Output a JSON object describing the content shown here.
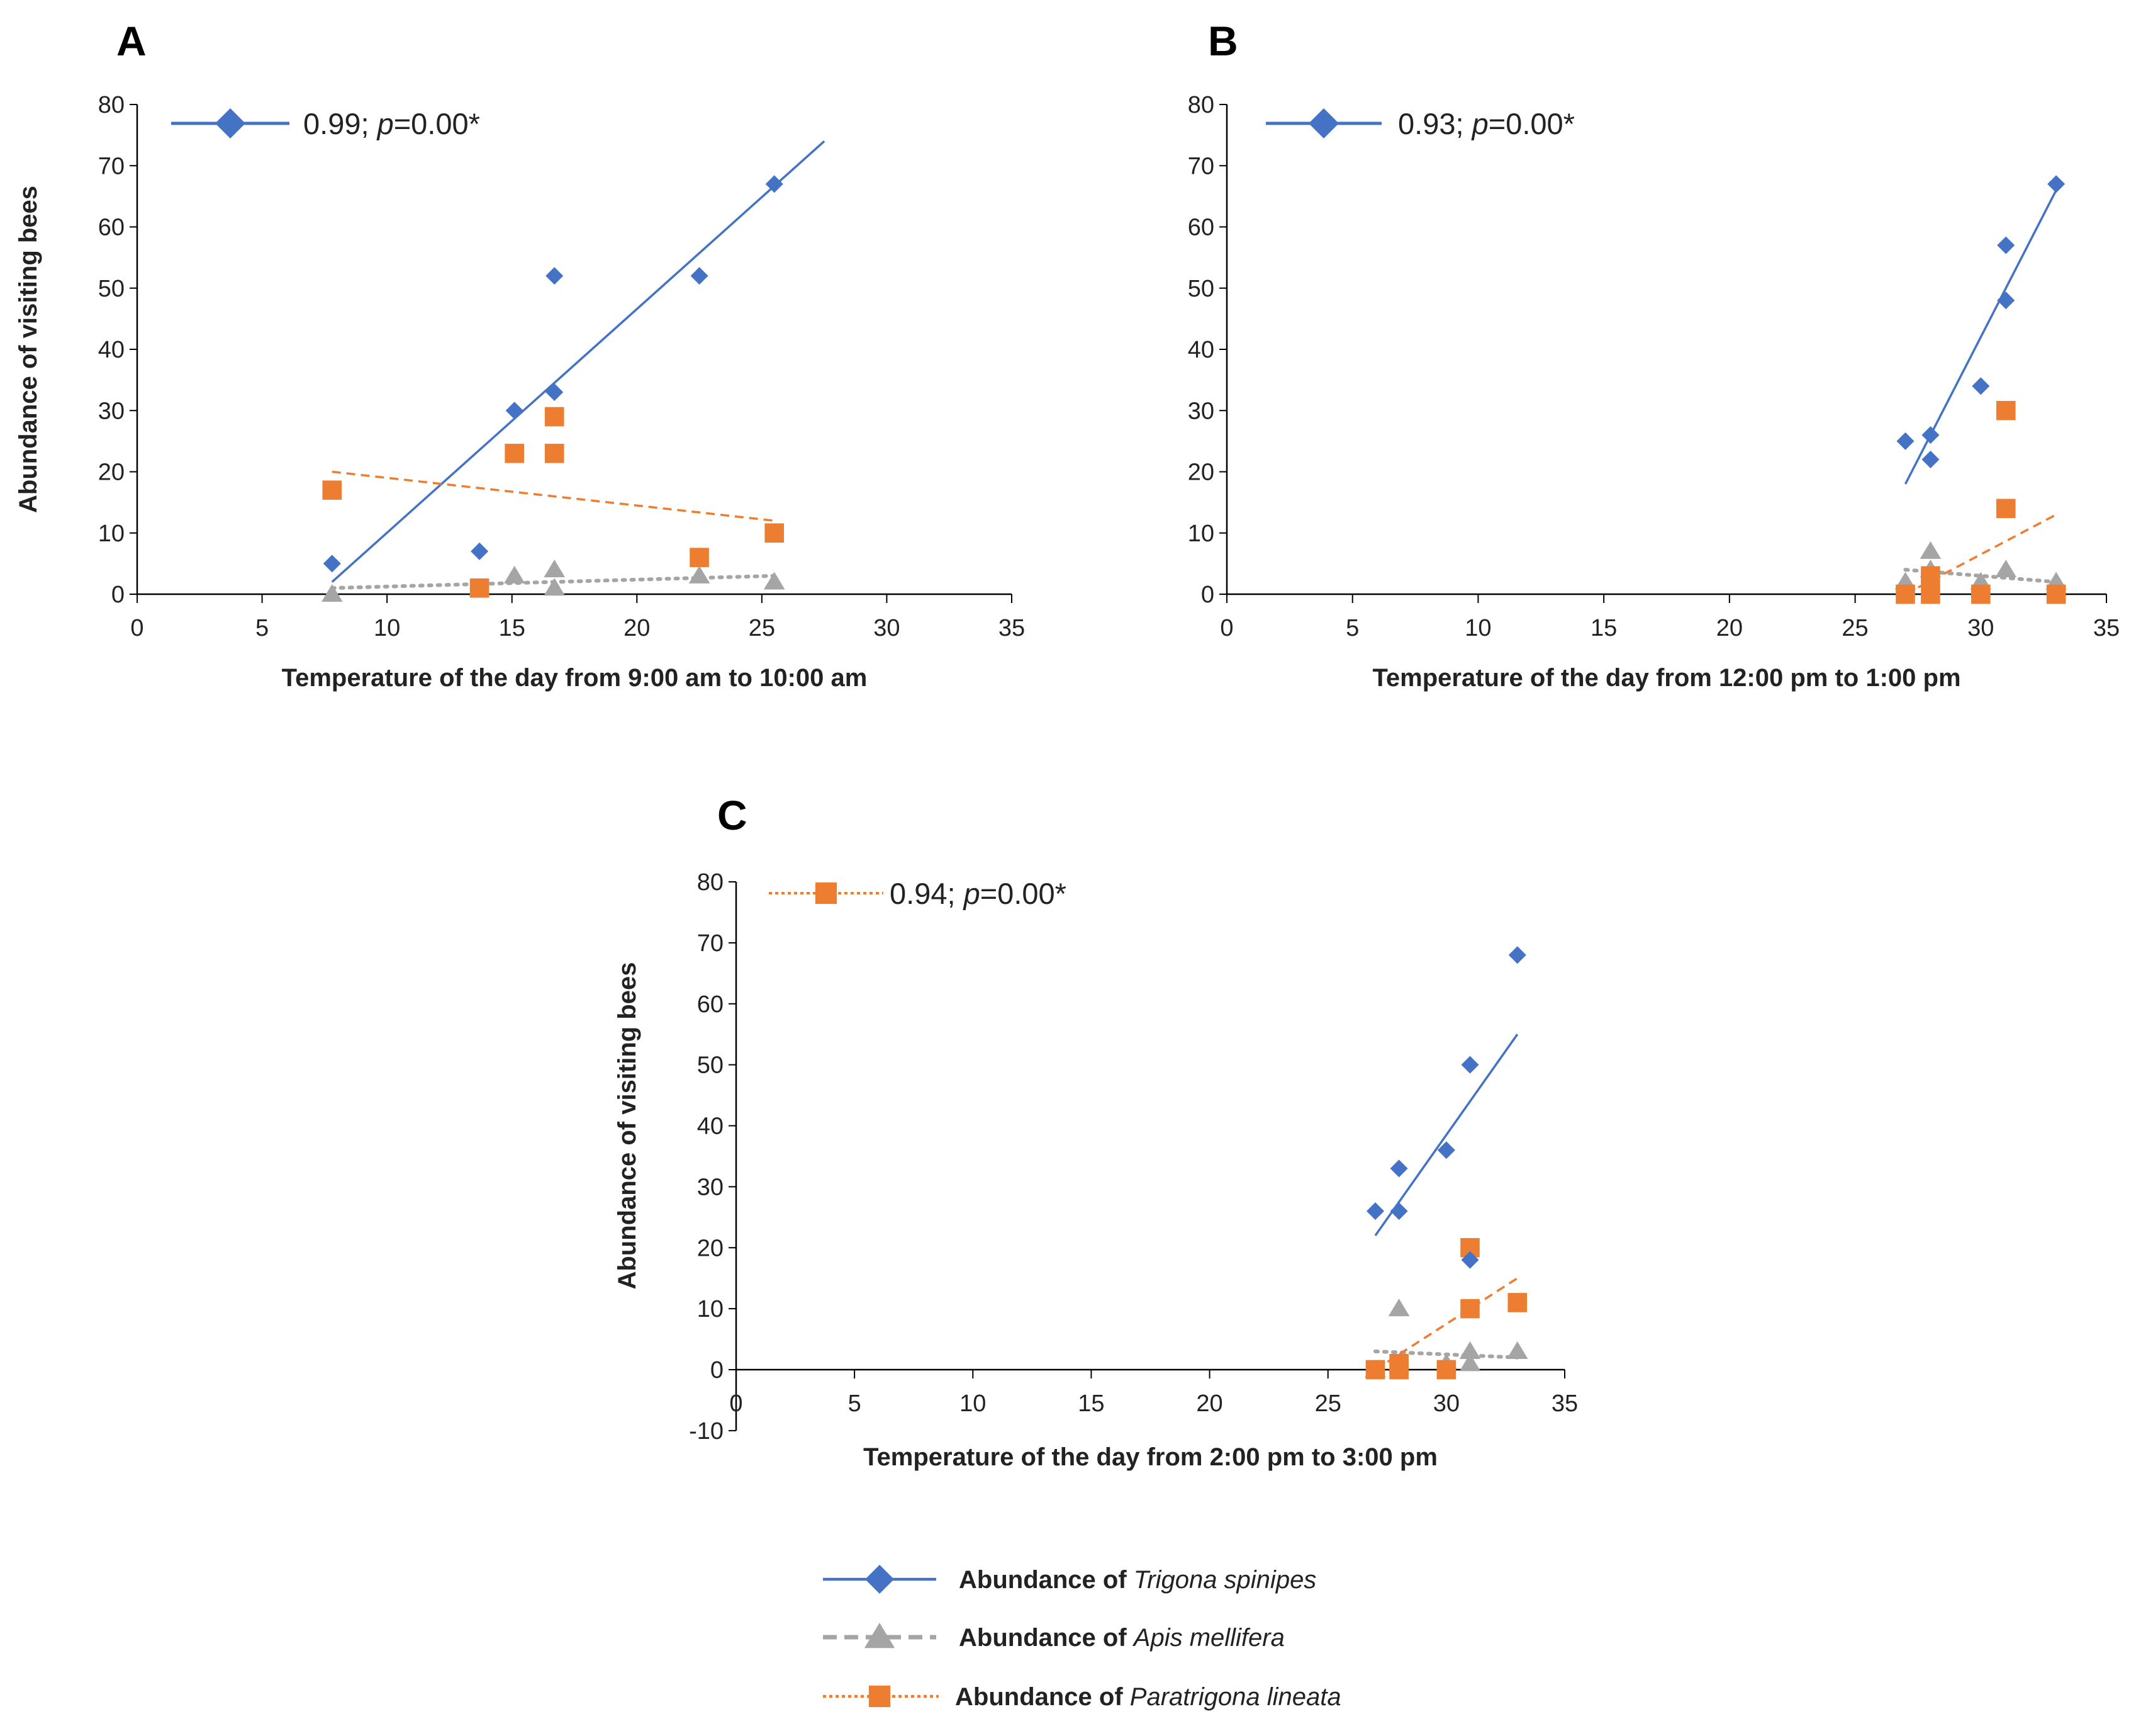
{
  "chart_data": [
    {
      "type": "scatter",
      "panel_letter": "A",
      "title": "",
      "xlabel": "Temperature of the day from 9:00 am to 10:00 am",
      "ylabel": "Abundance of visiting bees",
      "xlim": [
        0,
        35
      ],
      "ylim": [
        0,
        80
      ],
      "xticks": [
        0,
        5,
        10,
        15,
        20,
        25,
        30,
        35
      ],
      "yticks": [
        0,
        10,
        20,
        30,
        40,
        50,
        60,
        70,
        80
      ],
      "grid": false,
      "annotation": {
        "r": "0.99; ",
        "p_symbol": "p",
        "p_value": "=0.00*",
        "series_marker": "Trigona spinipes"
      },
      "series": [
        {
          "name": "Trigona spinipes",
          "x": [
            7.8,
            13.7,
            15.1,
            16.7,
            16.7,
            22.5,
            25.5
          ],
          "y": [
            5,
            7,
            30,
            33,
            52,
            52,
            67
          ],
          "trendline": {
            "x": [
              7.8,
              27.5
            ],
            "y": [
              2,
              74
            ]
          }
        },
        {
          "name": "Apis mellifera",
          "x": [
            7.8,
            13.7,
            15.1,
            16.7,
            16.7,
            22.5,
            25.5
          ],
          "y": [
            0,
            1,
            3,
            1,
            4,
            3,
            2
          ],
          "trendline": {
            "x": [
              7.8,
              25.5
            ],
            "y": [
              1,
              3
            ]
          }
        },
        {
          "name": "Paratrigona lineata",
          "x": [
            7.8,
            13.7,
            15.1,
            16.7,
            16.7,
            22.5,
            25.5
          ],
          "y": [
            17,
            1,
            23,
            23,
            29,
            6,
            10
          ],
          "trendline": {
            "x": [
              7.8,
              25.5
            ],
            "y": [
              20,
              12
            ]
          }
        }
      ]
    },
    {
      "type": "scatter",
      "panel_letter": "B",
      "title": "",
      "xlabel": "Temperature of the day from 12:00 pm to 1:00 pm",
      "ylabel": "",
      "xlim": [
        0,
        35
      ],
      "ylim": [
        0,
        80
      ],
      "xticks": [
        0,
        5,
        10,
        15,
        20,
        25,
        30,
        35
      ],
      "yticks": [
        0,
        10,
        20,
        30,
        40,
        50,
        60,
        70,
        80
      ],
      "grid": false,
      "annotation": {
        "r": "0.93; ",
        "p_symbol": "p",
        "p_value": "=0.00*",
        "series_marker": "Trigona spinipes"
      },
      "series": [
        {
          "name": "Trigona spinipes",
          "x": [
            27,
            28,
            28,
            30,
            31,
            31,
            33
          ],
          "y": [
            25,
            26,
            22,
            34,
            48,
            57,
            67
          ],
          "trendline": {
            "x": [
              27,
              33
            ],
            "y": [
              18,
              66
            ]
          }
        },
        {
          "name": "Apis mellifera",
          "x": [
            27,
            28,
            28,
            30,
            31,
            33
          ],
          "y": [
            2,
            7,
            4,
            2,
            4,
            2
          ],
          "trendline": {
            "x": [
              27,
              33
            ],
            "y": [
              4,
              2
            ]
          }
        },
        {
          "name": "Paratrigona lineata",
          "x": [
            27,
            28,
            28,
            30,
            31,
            31,
            33
          ],
          "y": [
            0,
            0,
            3,
            0,
            14,
            30,
            0
          ],
          "trendline": {
            "x": [
              27,
              33
            ],
            "y": [
              0,
              13
            ]
          }
        }
      ]
    },
    {
      "type": "scatter",
      "panel_letter": "C",
      "title": "",
      "xlabel": "Temperature of the day from 2:00 pm to 3:00 pm",
      "ylabel": "Abundance of visiting bees",
      "xlim": [
        0,
        35
      ],
      "ylim": [
        -10,
        80
      ],
      "xticks": [
        0,
        5,
        10,
        15,
        20,
        25,
        30,
        35
      ],
      "yticks": [
        -10,
        0,
        10,
        20,
        30,
        40,
        50,
        60,
        70,
        80
      ],
      "grid": false,
      "annotation": {
        "r": "0.94; ",
        "p_symbol": "p",
        "p_value": "=0.00*",
        "series_marker": "Paratrigona lineata"
      },
      "series": [
        {
          "name": "Trigona spinipes",
          "x": [
            27,
            28,
            28,
            30,
            31,
            31,
            33
          ],
          "y": [
            26,
            26,
            33,
            36,
            18,
            50,
            68
          ],
          "trendline": {
            "x": [
              27,
              33
            ],
            "y": [
              22,
              55
            ]
          }
        },
        {
          "name": "Apis mellifera",
          "x": [
            27,
            28,
            28,
            30,
            31,
            31,
            33
          ],
          "y": [
            0,
            10,
            1,
            1,
            1,
            3,
            3
          ],
          "trendline": {
            "x": [
              27,
              33
            ],
            "y": [
              3,
              2
            ]
          }
        },
        {
          "name": "Paratrigona lineata",
          "x": [
            27,
            28,
            28,
            30,
            31,
            31,
            33
          ],
          "y": [
            0,
            0,
            1,
            0,
            10,
            20,
            11
          ],
          "trendline": {
            "x": [
              27,
              33
            ],
            "y": [
              0,
              15
            ]
          }
        }
      ]
    }
  ],
  "legend": {
    "prefix": "Abundance of ",
    "items": [
      {
        "species": "Trigona spinipes",
        "line_style": "solid",
        "marker": "diamond"
      },
      {
        "species": "Apis mellifera",
        "line_style": "dashed",
        "marker": "triangle"
      },
      {
        "species": "Paratrigona lineata",
        "line_style": "dotted",
        "marker": "square"
      }
    ]
  },
  "colors": {
    "Trigona spinipes": "#4472C4",
    "Apis mellifera": "#A5A5A5",
    "Paratrigona lineata": "#ED7D31",
    "axis": "#000000"
  }
}
